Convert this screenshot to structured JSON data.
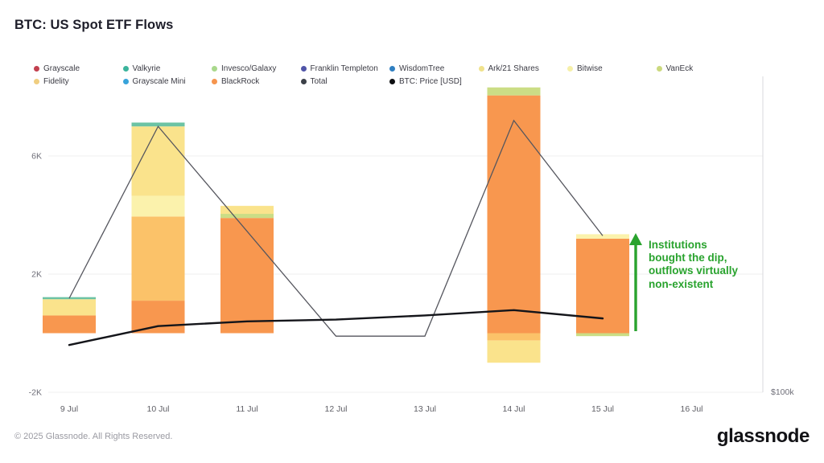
{
  "header": {
    "title": "BTC: US Spot ETF Flows"
  },
  "legend": {
    "items": [
      {
        "label": "Grayscale",
        "color": "#C2404F"
      },
      {
        "label": "Valkyrie",
        "color": "#3BB49C"
      },
      {
        "label": "Invesco/Galaxy",
        "color": "#A9D88C"
      },
      {
        "label": "Franklin Templeton",
        "color": "#5055A8"
      },
      {
        "label": "WisdomTree",
        "color": "#2F7FC1"
      },
      {
        "label": "Ark/21 Shares",
        "color": "#F0E28C"
      },
      {
        "label": "Bitwise",
        "color": "#F6F0A8"
      },
      {
        "label": "VanEck",
        "color": "#CBD97E"
      },
      {
        "label": "Fidelity",
        "color": "#F0CE80"
      },
      {
        "label": "Grayscale Mini",
        "color": "#38A3DA"
      },
      {
        "label": "BlackRock",
        "color": "#F6954E"
      },
      {
        "label": "Total",
        "color": "#3C4048"
      },
      {
        "label": "BTC: Price [USD]",
        "color": "#0E0F12"
      }
    ]
  },
  "annotation": {
    "text": "Institutions\nbought the dip,\noutflows virtually\nnon-existent",
    "color": "#29A32E"
  },
  "footer": {
    "copyright": "© 2025 Glassnode. All Rights Reserved.",
    "logo_text": "glassnode"
  },
  "chart_data": {
    "type": "bar",
    "stacked": true,
    "title": "BTC: US Spot ETF Flows",
    "categories": [
      "9 Jul",
      "10 Jul",
      "11 Jul",
      "12 Jul",
      "13 Jul",
      "14 Jul",
      "15 Jul",
      "16 Jul"
    ],
    "value_unit": "K",
    "ylim": [
      -2.5,
      8.6
    ],
    "yticks": [
      {
        "label": "6K",
        "value": 6
      },
      {
        "label": "2K",
        "value": 2
      },
      {
        "label": "-2K",
        "value": -2
      }
    ],
    "right_axis": {
      "tick_label": "$100k"
    },
    "grid": true,
    "legend_position": "top",
    "series_colors": {
      "Grayscale": "#C74A52",
      "Valkyrie": "#6CC3A4",
      "Invesco/Galaxy": "#A9D88C",
      "Franklin Templeton": "#5055A8",
      "WisdomTree": "#2F7FC1",
      "Ark/21 Shares": "#FAE38C",
      "Bitwise": "#FBF2AC",
      "VanEck": "#CBDD85",
      "Fidelity": "#FBC269",
      "Grayscale Mini": "#38A3DA",
      "BlackRock": "#F8974F"
    },
    "bars": [
      {
        "category": "9 Jul",
        "segments": [
          {
            "name": "BlackRock",
            "value": 0.6
          },
          {
            "name": "Ark/21 Shares",
            "value": 0.55
          },
          {
            "name": "Valkyrie",
            "value": 0.07
          }
        ]
      },
      {
        "category": "10 Jul",
        "segments": [
          {
            "name": "BlackRock",
            "value": 1.1
          },
          {
            "name": "Fidelity",
            "value": 2.85
          },
          {
            "name": "Bitwise",
            "value": 0.7
          },
          {
            "name": "Ark/21 Shares",
            "value": 2.35
          },
          {
            "name": "Valkyrie",
            "value": 0.13
          }
        ]
      },
      {
        "category": "11 Jul",
        "segments": [
          {
            "name": "BlackRock",
            "value": 3.9
          },
          {
            "name": "VanEck",
            "value": 0.14
          },
          {
            "name": "Ark/21 Shares",
            "value": 0.27
          }
        ]
      },
      {
        "category": "14 Jul",
        "segments": [
          {
            "name": "BlackRock",
            "value": 8.05
          },
          {
            "name": "VanEck",
            "value": 0.27
          },
          {
            "name": "Fidelity",
            "value": -0.25
          },
          {
            "name": "Ark/21 Shares",
            "value": -0.75
          }
        ]
      },
      {
        "category": "15 Jul",
        "segments": [
          {
            "name": "BlackRock",
            "value": 3.2
          },
          {
            "name": "Bitwise",
            "value": 0.15
          },
          {
            "name": "VanEck",
            "value": -0.1
          }
        ]
      }
    ],
    "total_line": {
      "name": "Total",
      "color": "#55565E",
      "points": [
        [
          "9 Jul",
          1.18
        ],
        [
          "10 Jul",
          7.0
        ],
        [
          "12 Jul",
          -0.1
        ],
        [
          "13 Jul",
          -0.1
        ],
        [
          "14 Jul",
          7.2
        ],
        [
          "15 Jul",
          3.3
        ]
      ]
    },
    "price_line": {
      "name": "BTC: Price [USD]",
      "axis": "right",
      "color": "#14151A",
      "points_left_axis_units": [
        [
          "9 Jul",
          -0.4
        ],
        [
          "10 Jul",
          0.24
        ],
        [
          "11 Jul",
          0.4
        ],
        [
          "12 Jul",
          0.46
        ],
        [
          "13 Jul",
          0.6
        ],
        [
          "14 Jul",
          0.78
        ],
        [
          "15 Jul",
          0.5
        ]
      ]
    }
  }
}
